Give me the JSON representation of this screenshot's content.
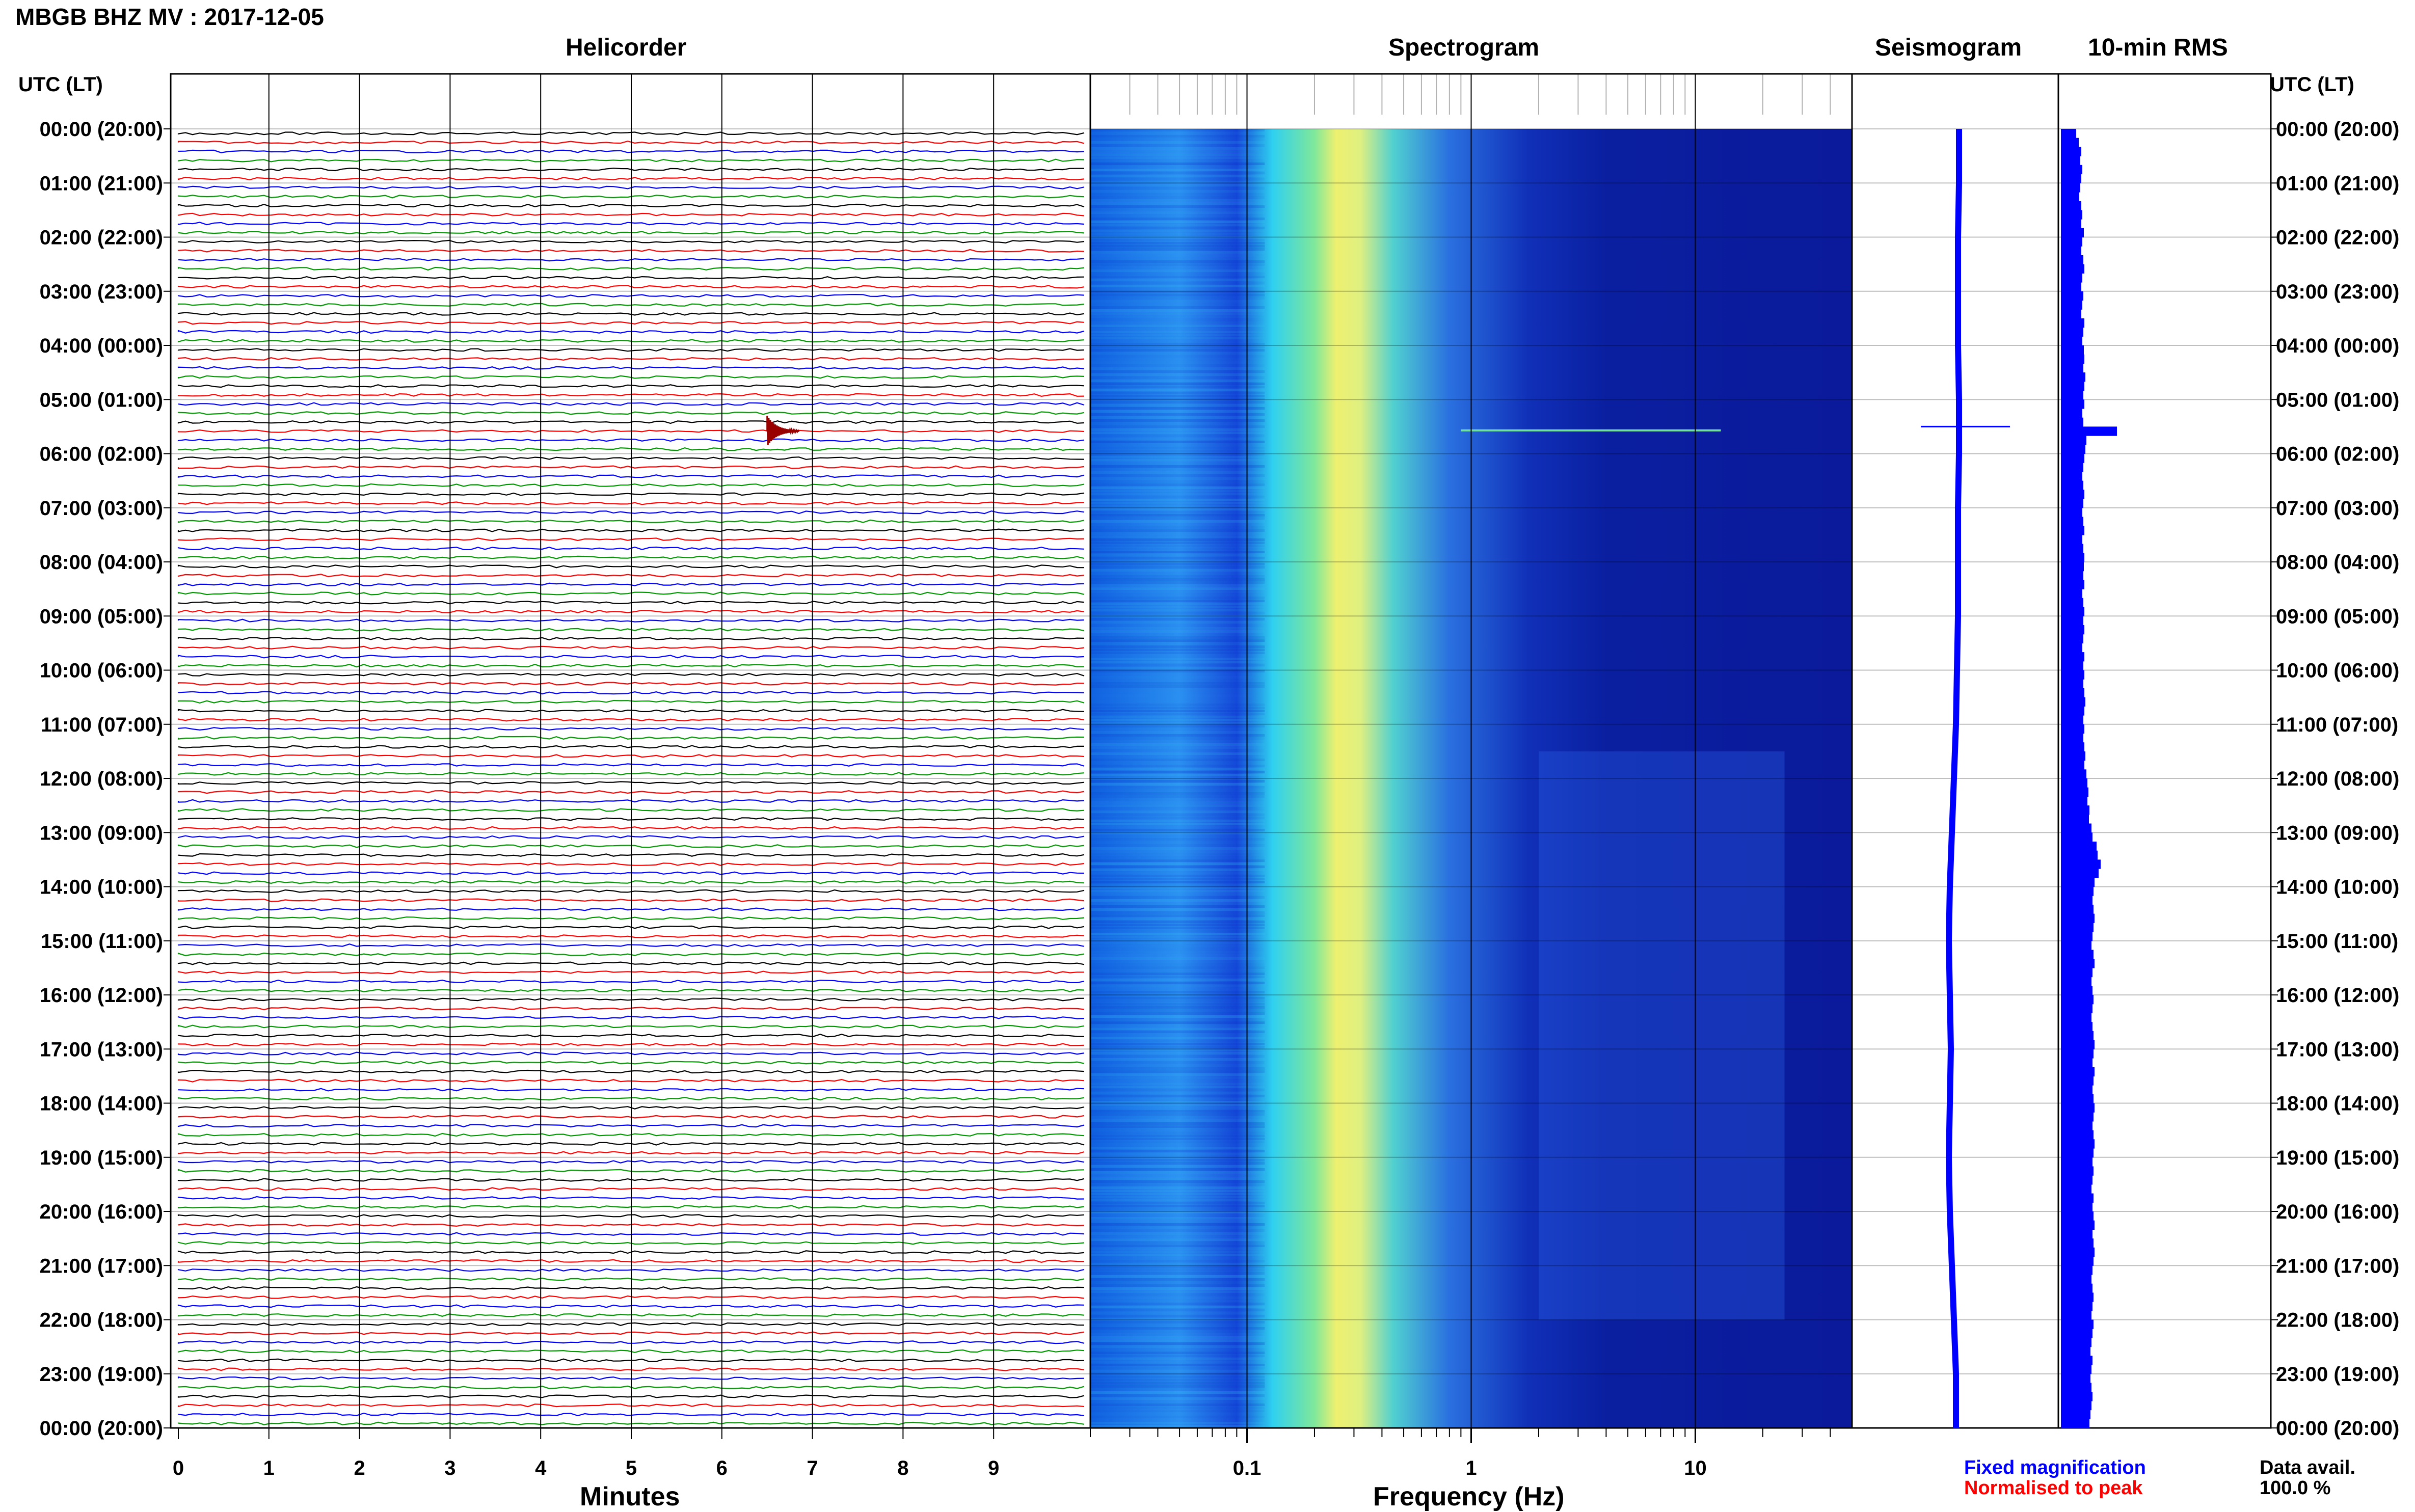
{
  "header": {
    "title": "MBGB BHZ MV : 2017-12-05"
  },
  "panels": {
    "helicorder": "Helicorder",
    "spectrogram": "Spectrogram",
    "seismogram": "Seismogram",
    "rms": "10-min RMS"
  },
  "axes": {
    "left_time_label": "UTC (LT)",
    "right_time_label": "UTC (LT)",
    "helicorder_xlabel": "Minutes",
    "spectrogram_xlabel": "Frequency (Hz)"
  },
  "legend": {
    "fixed": "Fixed magnification",
    "normalised": "Normalised to peak",
    "fixed_color": "#0000ff",
    "normalised_color": "#ff0000"
  },
  "data_availability": {
    "label": "Data avail.",
    "value": "100.0 %"
  },
  "colors": {
    "trace_cycle": [
      "#000000",
      "#ff0000",
      "#0000ff",
      "#009900"
    ],
    "event_trace": "#990000",
    "spectrogram_background": "#0a1a9a",
    "spectrogram_band": "#f0f060",
    "seismogram": "#0000ff",
    "rms_bar": "#0000ff"
  },
  "chart_data": [
    {
      "type": "line",
      "name": "helicorder",
      "xlabel": "Minutes",
      "x_ticks": [
        0,
        1,
        2,
        3,
        4,
        5,
        6,
        7,
        8,
        9
      ],
      "xlim": [
        0,
        10
      ],
      "time_ticks": [
        "00:00 (20:00)",
        "01:00 (21:00)",
        "02:00 (22:00)",
        "03:00 (23:00)",
        "04:00 (00:00)",
        "05:00 (01:00)",
        "06:00 (02:00)",
        "07:00 (03:00)",
        "08:00 (04:00)",
        "09:00 (05:00)",
        "10:00 (06:00)",
        "11:00 (07:00)",
        "12:00 (08:00)",
        "13:00 (09:00)",
        "14:00 (10:00)",
        "15:00 (11:00)",
        "16:00 (12:00)",
        "17:00 (13:00)",
        "18:00 (14:00)",
        "19:00 (15:00)",
        "20:00 (16:00)",
        "21:00 (17:00)",
        "22:00 (18:00)",
        "23:00 (19:00)",
        "00:00 (20:00)"
      ],
      "rows_per_hour": 6,
      "hours": 24,
      "event": {
        "hour": 5.5,
        "minute": 6.5
      },
      "grid": true
    },
    {
      "type": "heatmap",
      "name": "spectrogram",
      "xlabel": "Frequency (Hz)",
      "x_scale": "log",
      "xlim": [
        0.02,
        50
      ],
      "x_ticks": [
        0.1,
        1,
        10
      ],
      "x_tick_labels": [
        "0.1",
        "1",
        "10"
      ],
      "dominant_band_hz": [
        0.2,
        0.4
      ],
      "grid": true
    },
    {
      "type": "line",
      "name": "seismogram",
      "values": [
        0.05,
        0.05,
        0.04,
        0.04,
        0.04,
        0.05,
        0.05,
        0.04,
        0.04,
        0.04,
        0.03,
        0.02,
        0.0,
        -0.02,
        -0.04,
        -0.05,
        -0.04,
        -0.03,
        -0.04,
        -0.05,
        -0.04,
        -0.02,
        0.0,
        0.02,
        0.02
      ],
      "event_hour": 5.5,
      "grid": true
    },
    {
      "type": "bar",
      "name": "10-min RMS",
      "orientation": "horizontal",
      "values": [
        0.3,
        0.35,
        0.4,
        0.38,
        0.42,
        0.4,
        0.38,
        0.36,
        0.4,
        0.42,
        0.4,
        0.45,
        0.42,
        0.4,
        0.44,
        0.46,
        0.42,
        0.4,
        0.44,
        0.42,
        0.4,
        0.46,
        0.44,
        0.42,
        0.45,
        0.46,
        0.44,
        0.48,
        0.46,
        0.44,
        0.46,
        0.42,
        0.44,
        1.1,
        0.5,
        0.48,
        0.46,
        0.44,
        0.42,
        0.44,
        0.46,
        0.44,
        0.42,
        0.44,
        0.46,
        0.42,
        0.44,
        0.46,
        0.45,
        0.44,
        0.46,
        0.42,
        0.44,
        0.46,
        0.44,
        0.46,
        0.44,
        0.42,
        0.46,
        0.44,
        0.46,
        0.44,
        0.46,
        0.48,
        0.46,
        0.44,
        0.46,
        0.44,
        0.46,
        0.48,
        0.46,
        0.5,
        0.52,
        0.54,
        0.52,
        0.56,
        0.55,
        0.6,
        0.62,
        0.7,
        0.72,
        0.78,
        0.74,
        0.66,
        0.64,
        0.62,
        0.64,
        0.66,
        0.64,
        0.62,
        0.6,
        0.64,
        0.66,
        0.62,
        0.6,
        0.62,
        0.64,
        0.62,
        0.6,
        0.62,
        0.64,
        0.66,
        0.64,
        0.62,
        0.66,
        0.64,
        0.62,
        0.64,
        0.66,
        0.64,
        0.62,
        0.64,
        0.66,
        0.64,
        0.62,
        0.64,
        0.62,
        0.6,
        0.64,
        0.62,
        0.64,
        0.66,
        0.62,
        0.64,
        0.66,
        0.64,
        0.62,
        0.6,
        0.62,
        0.64,
        0.62,
        0.6,
        0.64,
        0.62,
        0.6,
        0.58,
        0.62,
        0.6,
        0.58,
        0.6,
        0.62,
        0.6,
        0.58,
        0.56
      ],
      "grid": true
    }
  ]
}
